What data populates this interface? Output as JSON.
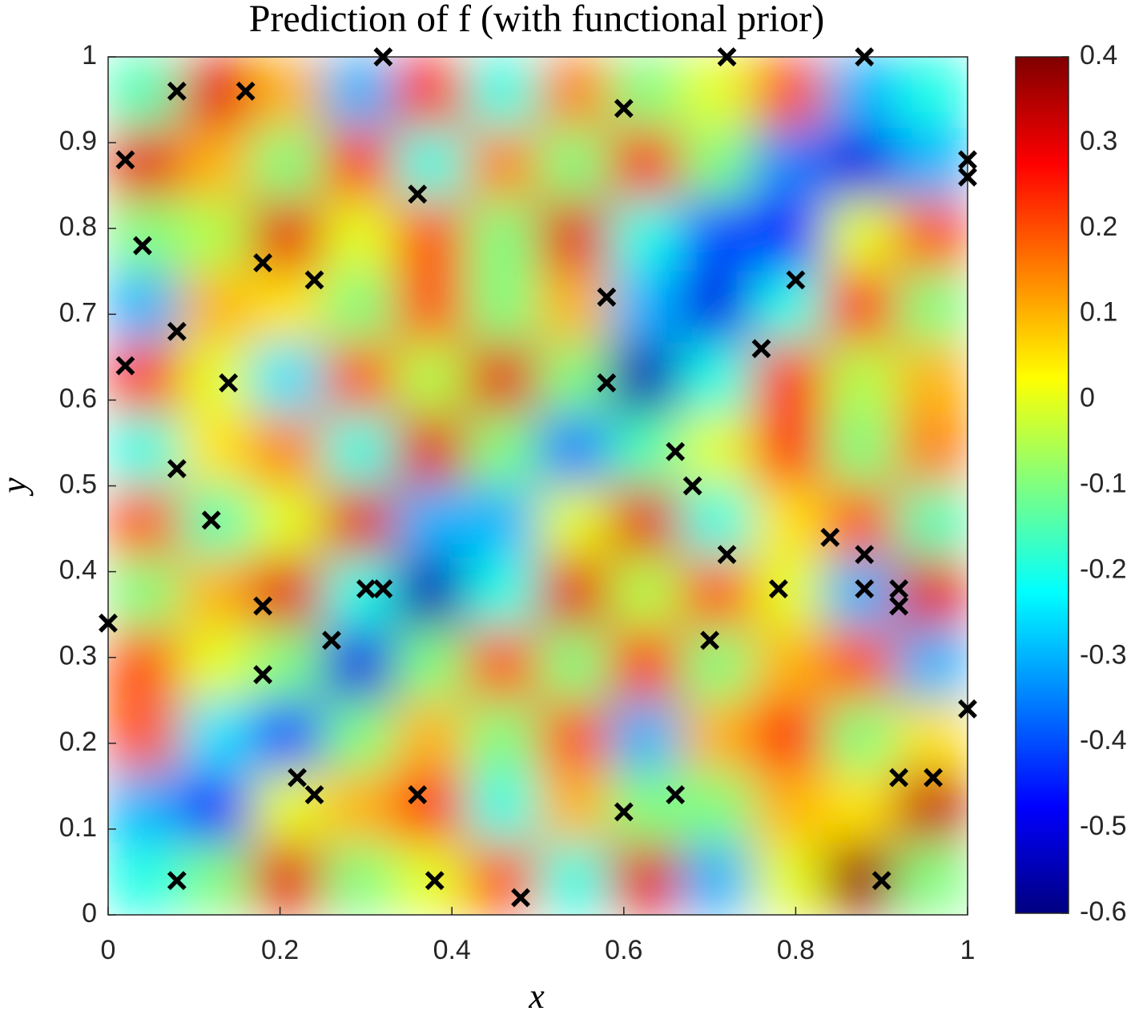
{
  "chart_data": {
    "type": "heatmap_scatter",
    "title": "Prediction of f (with functional prior)",
    "x_label": "x",
    "y_label": "y",
    "xlim": [
      0,
      1
    ],
    "ylim": [
      0,
      1
    ],
    "xticks": [
      0,
      0.2,
      0.4,
      0.6,
      0.8,
      1
    ],
    "yticks": [
      0,
      0.1,
      0.2,
      0.3,
      0.4,
      0.5,
      0.6,
      0.7,
      0.8,
      0.9,
      1
    ],
    "clim": [
      -0.6,
      0.4
    ],
    "cticks": [
      -0.6,
      -0.5,
      -0.4,
      -0.3,
      -0.2,
      -0.1,
      0,
      0.1,
      0.2,
      0.3,
      0.4
    ],
    "colormap": "jet",
    "z_x": [
      0.042,
      0.125,
      0.208,
      0.292,
      0.375,
      0.458,
      0.542,
      0.625,
      0.708,
      0.792,
      0.875,
      0.958
    ],
    "z_y": [
      0.958,
      0.875,
      0.792,
      0.708,
      0.625,
      0.542,
      0.458,
      0.375,
      0.292,
      0.208,
      0.125,
      0.042
    ],
    "z": [
      [
        -0.15,
        0.3,
        0.1,
        -0.3,
        0.25,
        -0.2,
        0.15,
        -0.1,
        0.0,
        0.2,
        -0.3,
        -0.2
      ],
      [
        0.3,
        0.1,
        -0.1,
        0.25,
        -0.2,
        0.15,
        -0.1,
        0.28,
        -0.1,
        -0.35,
        -0.5,
        -0.3
      ],
      [
        -0.1,
        -0.05,
        0.3,
        0.0,
        0.2,
        -0.1,
        0.3,
        -0.2,
        -0.4,
        -0.45,
        0.0,
        0.2
      ],
      [
        -0.3,
        0.1,
        0.05,
        -0.1,
        0.2,
        -0.1,
        0.1,
        -0.3,
        -0.5,
        -0.2,
        0.25,
        -0.1
      ],
      [
        0.25,
        0.0,
        -0.25,
        0.2,
        -0.05,
        0.3,
        -0.1,
        -0.55,
        -0.2,
        0.25,
        -0.05,
        0.1
      ],
      [
        -0.2,
        0.05,
        0.15,
        -0.2,
        0.3,
        -0.1,
        -0.35,
        -0.15,
        0.0,
        0.25,
        -0.1,
        0.15
      ],
      [
        0.2,
        -0.15,
        0.0,
        0.3,
        -0.3,
        -0.3,
        0.0,
        0.3,
        -0.2,
        0.05,
        0.2,
        -0.15
      ],
      [
        -0.1,
        0.1,
        0.3,
        -0.2,
        -0.55,
        -0.2,
        0.3,
        -0.05,
        0.2,
        0.0,
        -0.3,
        0.3
      ],
      [
        0.2,
        0.0,
        -0.1,
        -0.5,
        -0.1,
        0.2,
        -0.1,
        0.25,
        -0.1,
        0.1,
        0.2,
        -0.3
      ],
      [
        0.2,
        -0.25,
        -0.4,
        -0.1,
        0.1,
        -0.1,
        0.2,
        -0.3,
        0.1,
        0.25,
        -0.1,
        0.05
      ],
      [
        -0.3,
        -0.45,
        0.0,
        0.1,
        0.25,
        -0.2,
        0.1,
        -0.1,
        -0.1,
        0.1,
        0.05,
        0.33
      ],
      [
        -0.2,
        -0.1,
        0.3,
        -0.1,
        0.0,
        0.2,
        -0.2,
        0.3,
        -0.3,
        0.0,
        0.37,
        -0.1
      ]
    ],
    "points": {
      "color": "#000000",
      "x": [
        0.32,
        0.72,
        0.88,
        0.08,
        0.16,
        0.6,
        0.02,
        1,
        1,
        0.36,
        0.04,
        0.18,
        0.24,
        0.8,
        0.58,
        0.08,
        0.76,
        0.02,
        0.14,
        0.58,
        0.66,
        0.08,
        0.68,
        0.12,
        0.84,
        0.72,
        0.88,
        0.3,
        0.32,
        0.78,
        0.88,
        0.92,
        0.92,
        0.18,
        0,
        0.26,
        0.7,
        0.18,
        1,
        0.22,
        0.92,
        0.96,
        0.24,
        0.36,
        0.66,
        0.6,
        0.08,
        0.38,
        0.9,
        0.48
      ],
      "y": [
        1,
        1,
        1,
        0.96,
        0.96,
        0.94,
        0.88,
        0.88,
        0.86,
        0.84,
        0.78,
        0.76,
        0.74,
        0.74,
        0.72,
        0.68,
        0.66,
        0.64,
        0.62,
        0.62,
        0.54,
        0.52,
        0.5,
        0.46,
        0.44,
        0.42,
        0.42,
        0.38,
        0.38,
        0.38,
        0.38,
        0.38,
        0.36,
        0.36,
        0.34,
        0.32,
        0.32,
        0.28,
        0.24,
        0.16,
        0.16,
        0.16,
        0.14,
        0.14,
        0.14,
        0.12,
        0.04,
        0.04,
        0.04,
        0.02
      ]
    }
  }
}
